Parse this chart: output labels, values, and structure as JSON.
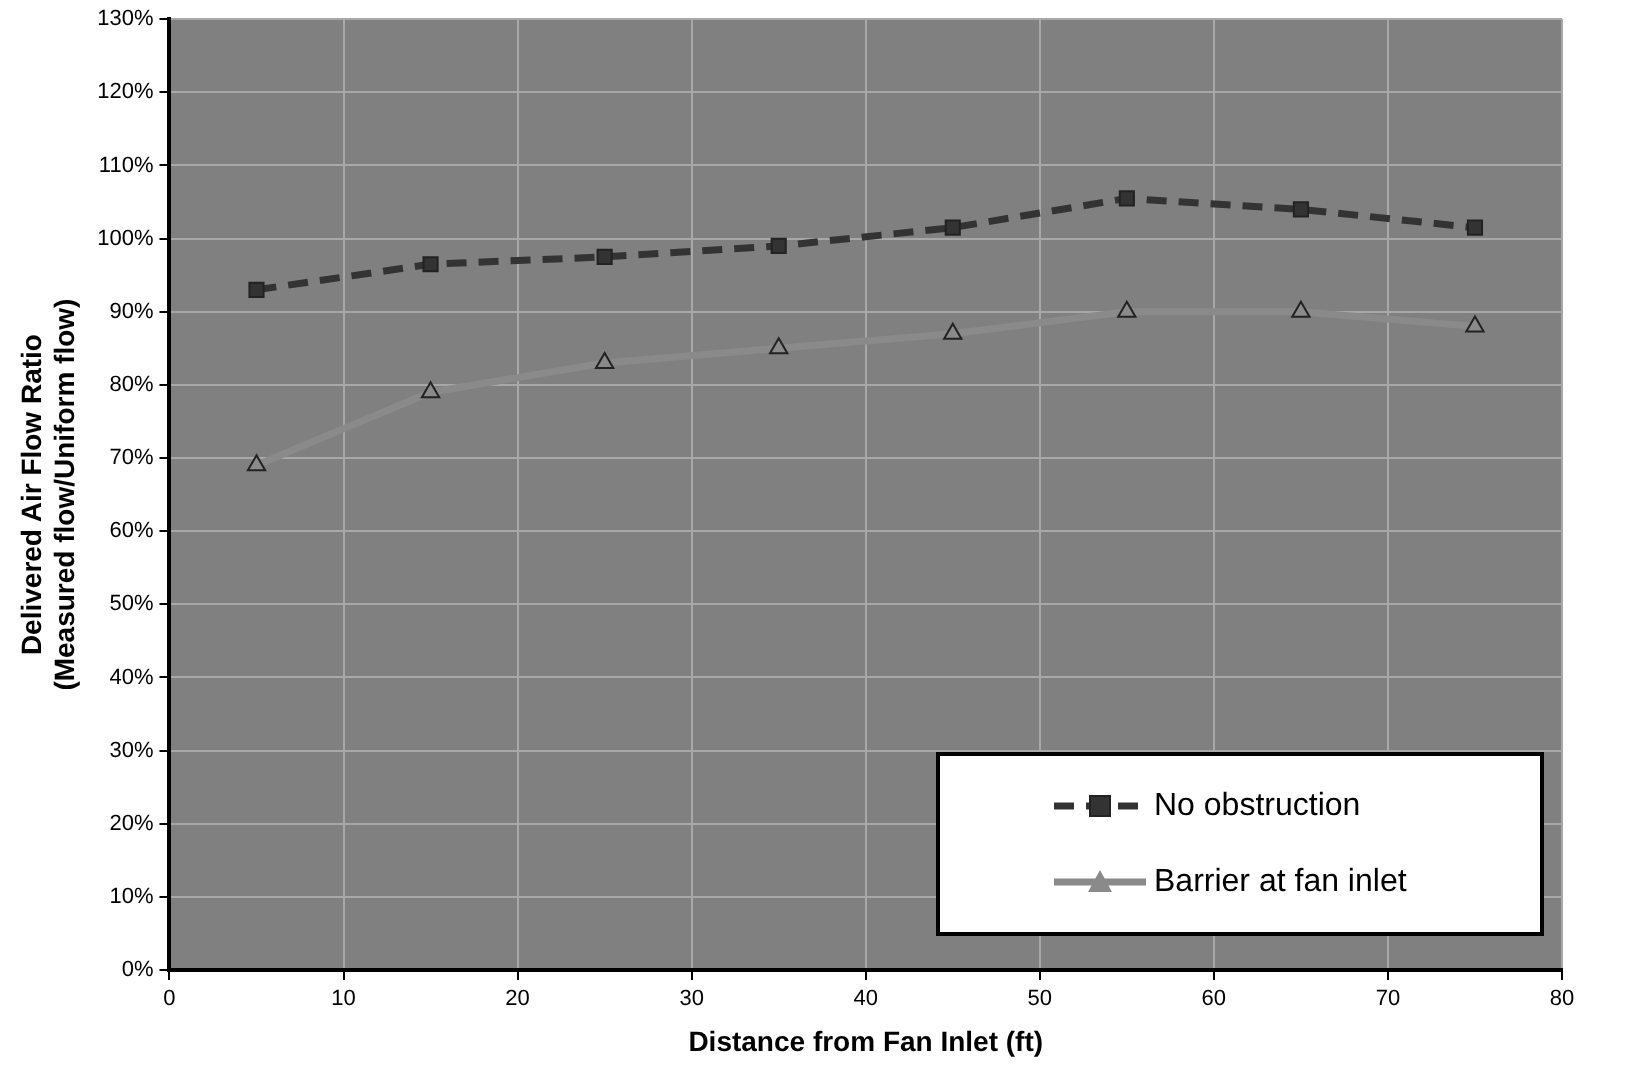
{
  "chart_data": {
    "type": "line",
    "xlabel": "Distance from Fan Inlet (ft)",
    "ylabel": "Delivered Air Flow Ratio\n(Measured flow/Uniform flow)",
    "x": [
      5,
      15,
      25,
      35,
      45,
      55,
      65,
      75
    ],
    "series": [
      {
        "name": "No obstruction",
        "color": "#333333",
        "marker": "square",
        "line_style": "dashed",
        "values": [
          93,
          96.5,
          97.5,
          99,
          101.5,
          105.5,
          104,
          101.5
        ]
      },
      {
        "name": "Barrier at fan inlet",
        "color": "#8a8a8a",
        "marker": "triangle",
        "line_style": "solid",
        "values": [
          69,
          79,
          83,
          85,
          87,
          90,
          90,
          88
        ]
      }
    ],
    "xlim": [
      0,
      80
    ],
    "xticks": [
      0,
      10,
      20,
      30,
      40,
      50,
      60,
      70,
      80
    ],
    "ylim": [
      0,
      130
    ],
    "yticks": [
      {
        "value": 0,
        "label": "0%"
      },
      {
        "value": 10,
        "label": "10%"
      },
      {
        "value": 20,
        "label": "20%"
      },
      {
        "value": 30,
        "label": "30%"
      },
      {
        "value": 40,
        "label": "40%"
      },
      {
        "value": 50,
        "label": "50%"
      },
      {
        "value": 60,
        "label": "60%"
      },
      {
        "value": 70,
        "label": "70%"
      },
      {
        "value": 80,
        "label": "80%"
      },
      {
        "value": 90,
        "label": "90%"
      },
      {
        "value": 100,
        "label": "100%"
      },
      {
        "value": 110,
        "label": "110%"
      },
      {
        "value": 120,
        "label": "120%"
      },
      {
        "value": 130,
        "label": "130%"
      }
    ],
    "grid": true,
    "legend": "bottom right"
  }
}
